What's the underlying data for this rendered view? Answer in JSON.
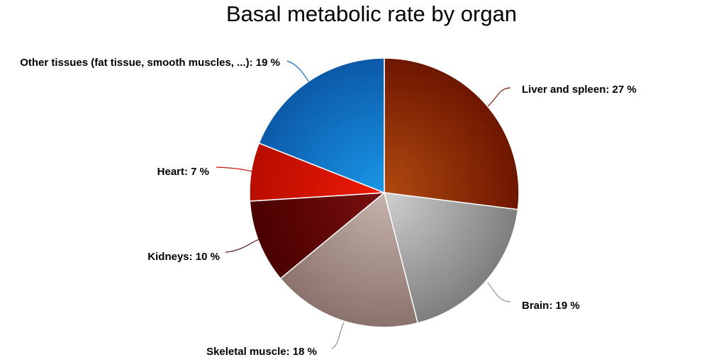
{
  "chart_data": {
    "type": "pie",
    "title": "Basal metabolic rate by organ",
    "start_angle_deg": 0,
    "direction": "clockwise",
    "slices": [
      {
        "name": "Liver and spleen",
        "value": 27,
        "label": "Liver and spleen: 27 %",
        "color_light": "#b04a10",
        "color_dark": "#6e1600",
        "leader_color": "#7a1f0a"
      },
      {
        "name": "Brain",
        "value": 19,
        "label": "Brain: 19 %",
        "color_light": "#d0d0d0",
        "color_dark": "#7e7e7e",
        "leader_color": "#9a9a9a"
      },
      {
        "name": "Skeletal muscle",
        "value": 18,
        "label": "Skeletal muscle: 18 %",
        "color_light": "#c7b3ad",
        "color_dark": "#8a736c",
        "leader_color": "#a08c86"
      },
      {
        "name": "Kidneys",
        "value": 10,
        "label": "Kidneys: 10 %",
        "color_light": "#7a0f0f",
        "color_dark": "#4a0000",
        "leader_color": "#5a0a0a"
      },
      {
        "name": "Heart",
        "value": 7,
        "label": "Heart: 7 %",
        "color_light": "#f01a05",
        "color_dark": "#b80d00",
        "leader_color": "#c81a10"
      },
      {
        "name": "Other tissues (fat tissue, smooth muscles, ...)",
        "value": 19,
        "label": "Other tissues (fat tissue, smooth muscles, ...): 19 %",
        "color_light": "#1a96e8",
        "color_dark": "#0b5aa8",
        "leader_color": "#1a70c0"
      }
    ]
  }
}
